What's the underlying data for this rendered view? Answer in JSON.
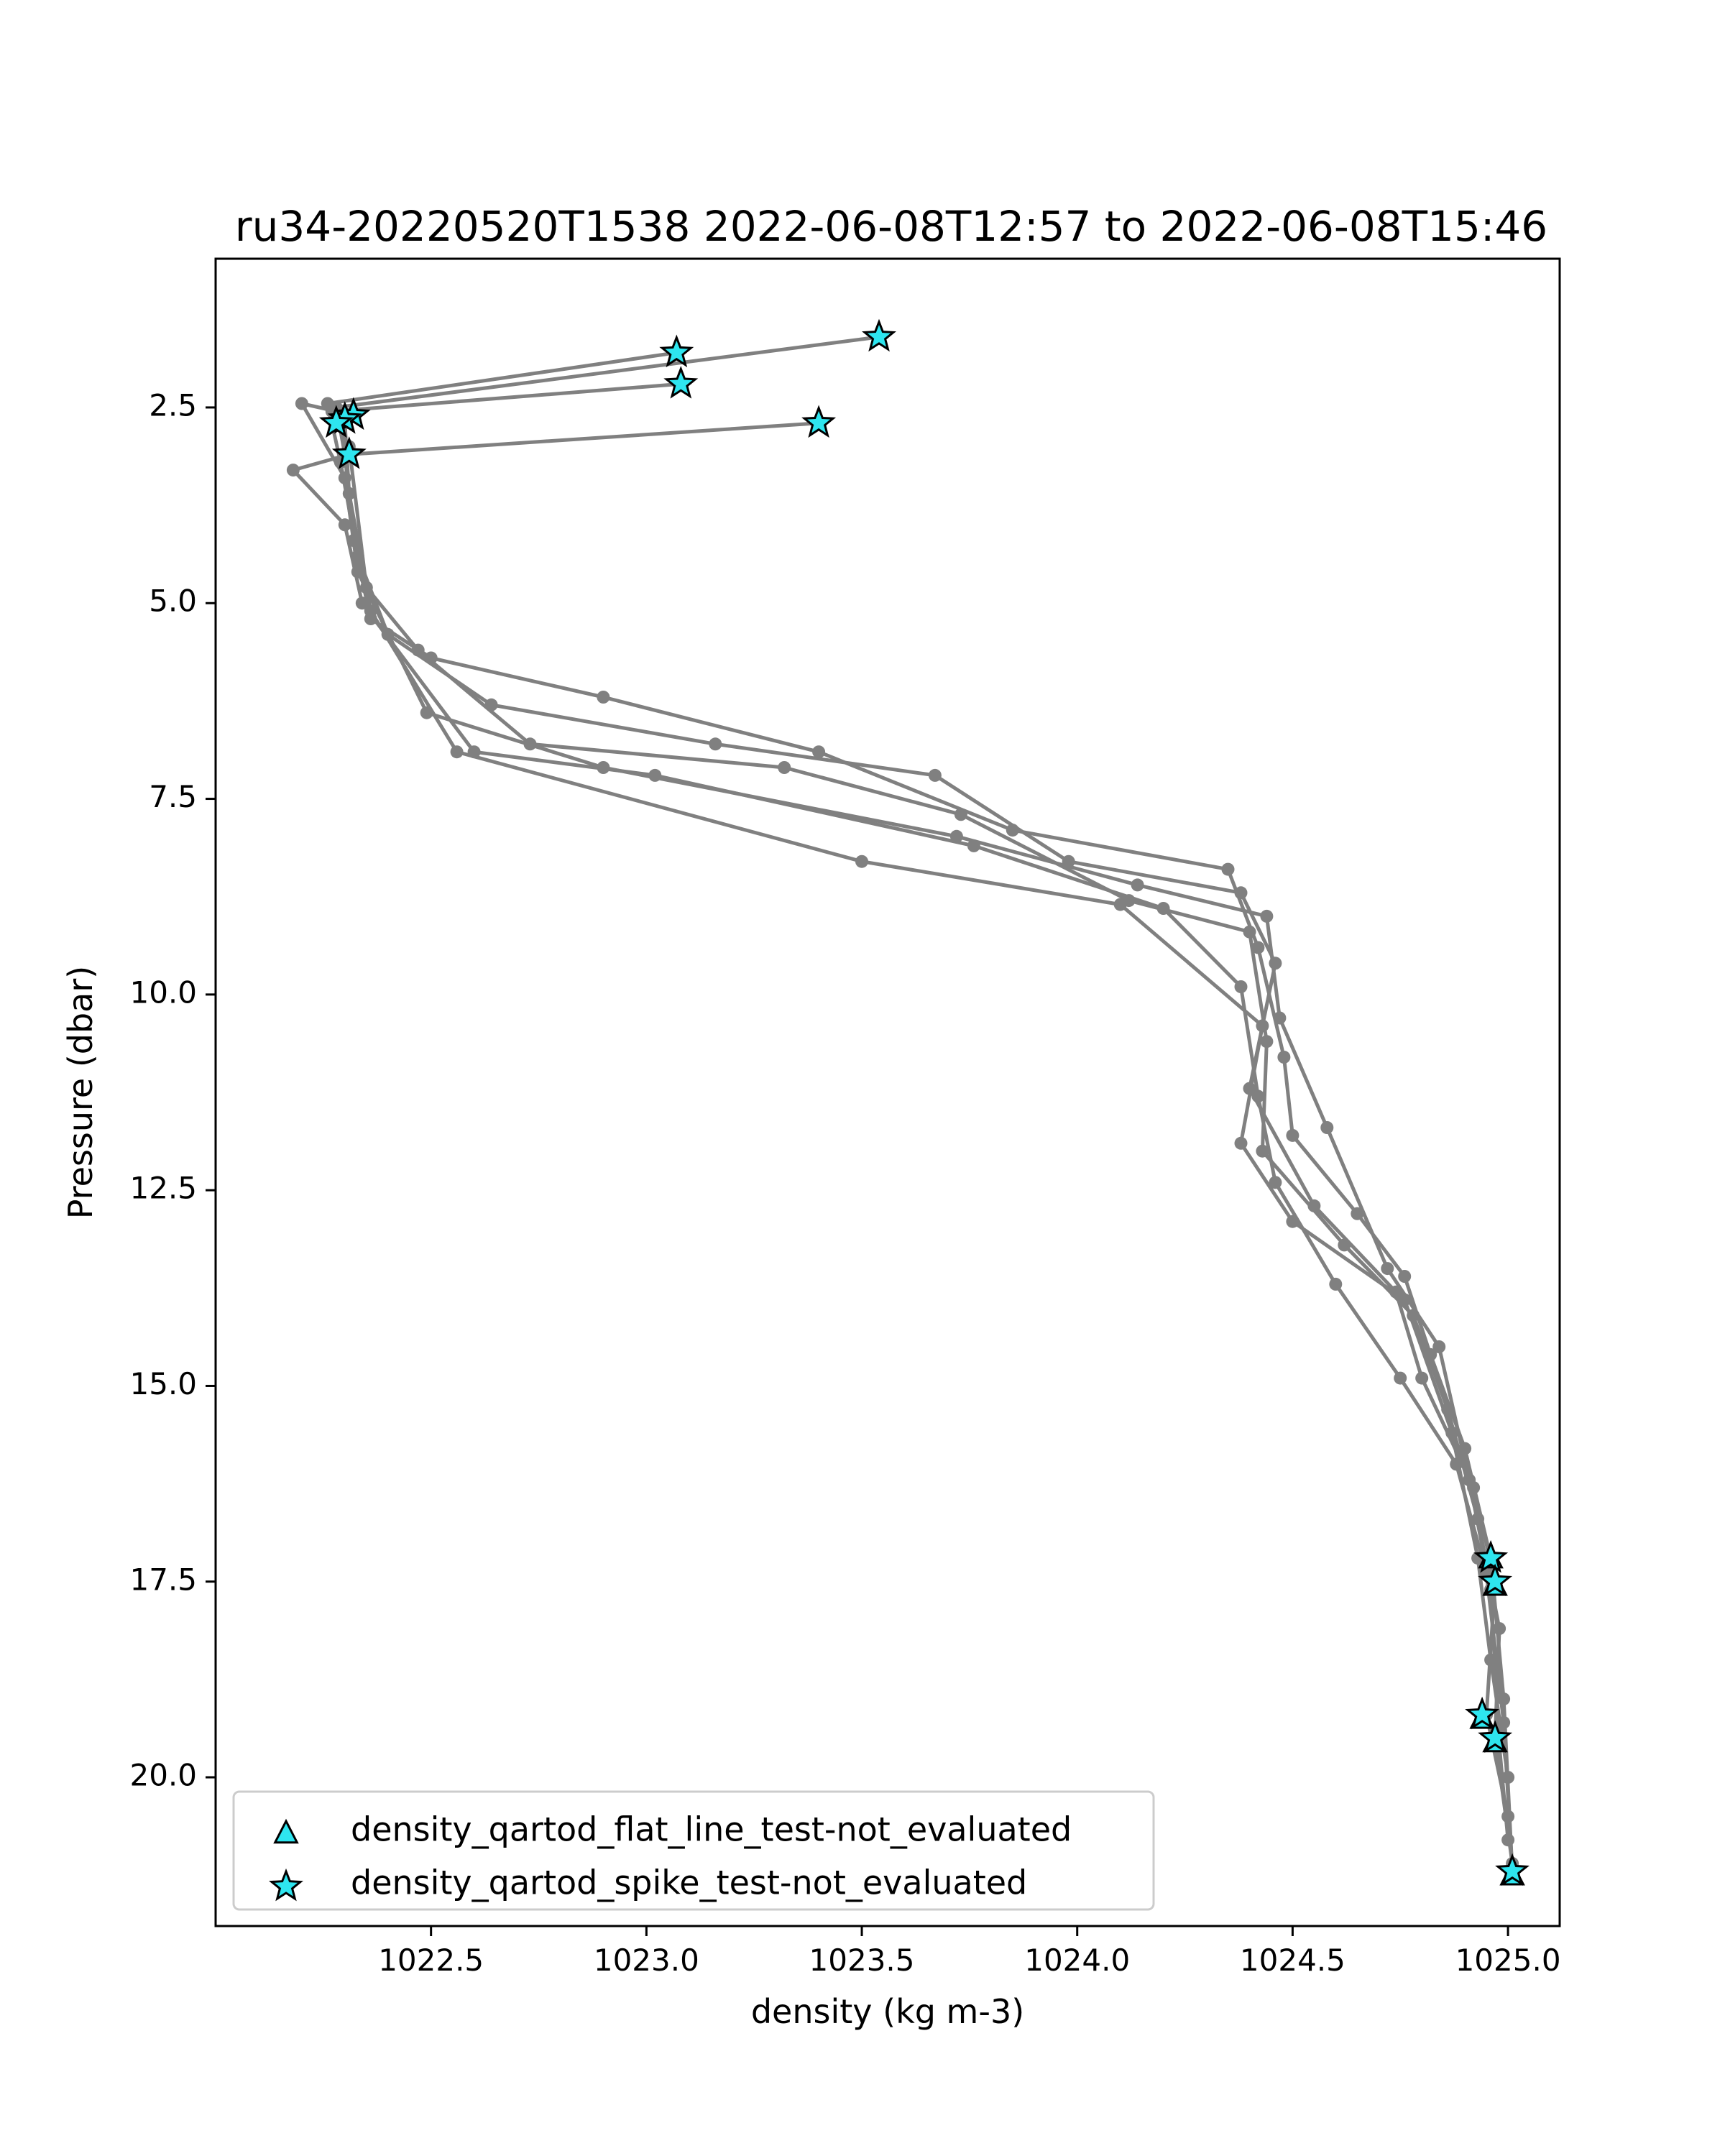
{
  "chart_data": {
    "type": "line",
    "title": "ru34-20220520T1538 2022-06-08T12:57 to 2022-06-08T15:46",
    "xlabel": "density (kg m-3)",
    "ylabel": "Pressure (dbar)",
    "xlim": [
      1022.0,
      1025.12
    ],
    "ylim": [
      21.9,
      0.6
    ],
    "y_inverted": true,
    "grid": false,
    "legend_position": "lower-left",
    "x_ticks": [
      1022.5,
      1023.0,
      1023.5,
      1024.0,
      1024.5,
      1025.0
    ],
    "x_tick_labels": [
      "1022.5",
      "1023.0",
      "1023.5",
      "1024.0",
      "1024.5",
      "1025.0"
    ],
    "y_ticks": [
      2.5,
      5.0,
      7.5,
      10.0,
      12.5,
      15.0,
      17.5,
      20.0
    ],
    "y_tick_labels": [
      "2.5",
      "5.0",
      "7.5",
      "10.0",
      "12.5",
      "15.0",
      "17.5",
      "20.0"
    ],
    "line_color": "#808080",
    "flag_color": "#2ee5ef",
    "legend": [
      {
        "label": "density_qartod_flat_line_test-not_evaluated",
        "marker": "triangle"
      },
      {
        "label": "density_qartod_spike_test-not_evaluated",
        "marker": "star"
      }
    ],
    "profiles": [
      [
        [
          1023.54,
          1.6
        ],
        [
          1022.28,
          2.5
        ],
        [
          1022.3,
          3.1
        ],
        [
          1022.32,
          4.2
        ],
        [
          1022.36,
          5.2
        ],
        [
          1022.5,
          5.7
        ],
        [
          1022.9,
          6.2
        ],
        [
          1023.4,
          6.9
        ],
        [
          1023.85,
          7.9
        ],
        [
          1024.35,
          8.4
        ],
        [
          1024.42,
          9.4
        ],
        [
          1024.48,
          10.8
        ],
        [
          1024.5,
          11.8
        ],
        [
          1024.65,
          12.8
        ],
        [
          1024.76,
          13.6
        ],
        [
          1024.82,
          14.6
        ],
        [
          1024.9,
          15.8
        ],
        [
          1024.96,
          17.2
        ],
        [
          1024.99,
          19.0
        ],
        [
          1025.01,
          21.2
        ]
      ],
      [
        [
          1023.07,
          1.8
        ],
        [
          1022.26,
          2.45
        ],
        [
          1022.29,
          3.2
        ],
        [
          1022.33,
          4.4
        ],
        [
          1022.4,
          5.4
        ],
        [
          1022.64,
          6.3
        ],
        [
          1023.16,
          6.8
        ],
        [
          1023.67,
          7.2
        ],
        [
          1023.98,
          8.3
        ],
        [
          1024.38,
          8.7
        ],
        [
          1024.46,
          9.6
        ],
        [
          1024.4,
          11.2
        ],
        [
          1024.55,
          12.7
        ],
        [
          1024.74,
          13.8
        ],
        [
          1024.8,
          14.9
        ],
        [
          1024.92,
          16.3
        ],
        [
          1024.97,
          17.5
        ],
        [
          1024.95,
          19.2
        ],
        [
          1025.0,
          20.5
        ]
      ],
      [
        [
          1023.08,
          2.2
        ],
        [
          1022.27,
          2.55
        ],
        [
          1022.31,
          3.0
        ],
        [
          1022.35,
          4.8
        ],
        [
          1022.47,
          5.6
        ],
        [
          1022.73,
          6.8
        ],
        [
          1023.32,
          7.1
        ],
        [
          1023.73,
          7.7
        ],
        [
          1024.12,
          8.8
        ],
        [
          1024.4,
          9.2
        ],
        [
          1024.44,
          10.6
        ],
        [
          1024.43,
          12.0
        ],
        [
          1024.62,
          13.2
        ],
        [
          1024.78,
          14.1
        ],
        [
          1024.86,
          15.3
        ],
        [
          1024.93,
          16.7
        ],
        [
          1024.98,
          18.1
        ],
        [
          1024.97,
          19.5
        ],
        [
          1025.01,
          21.1
        ]
      ],
      [
        [
          1023.4,
          2.7
        ],
        [
          1022.31,
          3.1
        ],
        [
          1022.18,
          3.3
        ],
        [
          1022.3,
          4.0
        ],
        [
          1022.34,
          5.0
        ],
        [
          1022.6,
          6.9
        ],
        [
          1023.02,
          7.2
        ],
        [
          1023.76,
          8.1
        ],
        [
          1024.2,
          8.9
        ],
        [
          1024.38,
          9.9
        ],
        [
          1024.42,
          11.3
        ],
        [
          1024.46,
          12.4
        ],
        [
          1024.6,
          13.7
        ],
        [
          1024.75,
          14.9
        ],
        [
          1024.88,
          16.0
        ],
        [
          1024.95,
          17.4
        ],
        [
          1024.99,
          19.3
        ],
        [
          1025.01,
          21.2
        ]
      ],
      [
        [
          1022.32,
          2.6
        ],
        [
          1022.2,
          2.45
        ],
        [
          1022.3,
          3.4
        ],
        [
          1022.33,
          4.6
        ],
        [
          1022.49,
          6.4
        ],
        [
          1022.9,
          7.1
        ],
        [
          1023.72,
          7.98
        ],
        [
          1024.14,
          8.6
        ],
        [
          1024.44,
          9.0
        ],
        [
          1024.47,
          10.3
        ],
        [
          1024.58,
          11.7
        ],
        [
          1024.72,
          13.5
        ],
        [
          1024.84,
          14.5
        ],
        [
          1024.91,
          16.2
        ],
        [
          1024.96,
          17.6
        ],
        [
          1024.98,
          19.6
        ],
        [
          1025.0,
          20.8
        ]
      ],
      [
        [
          1022.3,
          2.7
        ],
        [
          1022.31,
          3.6
        ],
        [
          1022.36,
          5.1
        ],
        [
          1022.56,
          6.9
        ],
        [
          1023.5,
          8.3
        ],
        [
          1024.1,
          8.85
        ],
        [
          1024.43,
          10.4
        ],
        [
          1024.38,
          11.9
        ],
        [
          1024.5,
          12.9
        ],
        [
          1024.76,
          13.9
        ],
        [
          1024.87,
          15.6
        ],
        [
          1024.93,
          17.2
        ],
        [
          1024.96,
          18.5
        ],
        [
          1025.0,
          20.0
        ]
      ]
    ],
    "spike_flags": [
      [
        1023.54,
        1.6
      ],
      [
        1023.07,
        1.8
      ],
      [
        1023.08,
        2.2
      ],
      [
        1023.4,
        2.7
      ],
      [
        1022.32,
        2.6
      ],
      [
        1022.3,
        2.65
      ],
      [
        1022.28,
        2.7
      ],
      [
        1022.31,
        3.1
      ],
      [
        1024.96,
        17.2
      ],
      [
        1024.97,
        17.5
      ],
      [
        1024.94,
        19.2
      ],
      [
        1024.97,
        19.5
      ],
      [
        1025.01,
        21.2
      ]
    ],
    "flat_line_flags": [
      [
        1024.96,
        17.2
      ],
      [
        1024.97,
        17.55
      ],
      [
        1024.94,
        19.25
      ],
      [
        1024.97,
        19.55
      ],
      [
        1025.01,
        21.25
      ]
    ]
  }
}
